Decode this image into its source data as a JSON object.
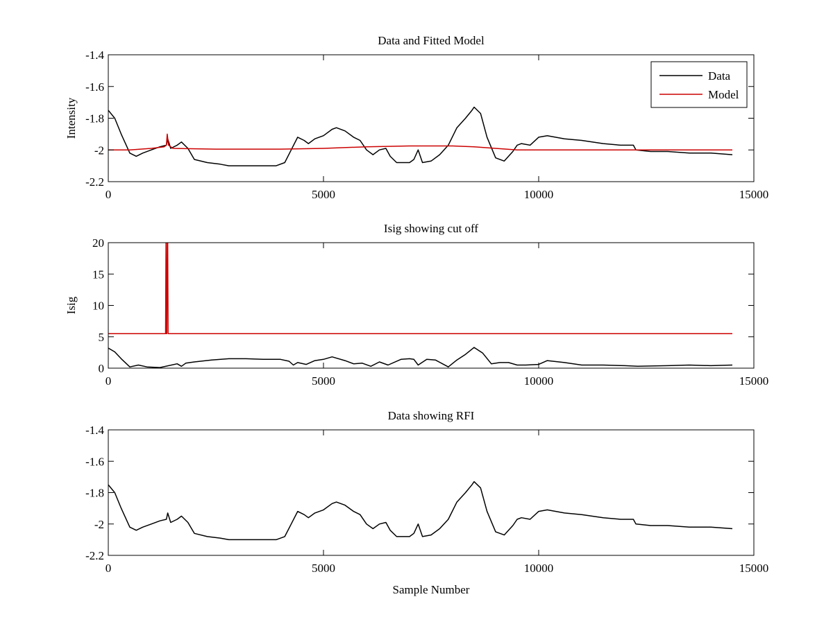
{
  "chart_data": [
    {
      "type": "line",
      "title": "Data and Fitted Model",
      "xlabel": "",
      "ylabel": "Intensity",
      "xlim": [
        0,
        15000
      ],
      "ylim": [
        -2.2,
        -1.4
      ],
      "xticks": [
        0,
        5000,
        10000,
        15000
      ],
      "xtick_labels": [
        "0",
        "5000",
        "10000",
        "15000"
      ],
      "yticks": [
        -2.2,
        -2,
        -1.8,
        -1.6,
        -1.4
      ],
      "ytick_labels": [
        "-2.2",
        "-2",
        "-1.8",
        "-1.6",
        "-1.4"
      ],
      "grid": false,
      "legend_position": "top-right",
      "series": [
        {
          "name": "Data",
          "color": "#000000",
          "x": [
            0,
            150,
            300,
            500,
            650,
            800,
            1000,
            1200,
            1350,
            1380,
            1450,
            1600,
            1700,
            1850,
            2000,
            2300,
            2600,
            2800,
            3200,
            3600,
            3900,
            4100,
            4250,
            4400,
            4550,
            4650,
            4800,
            5000,
            5200,
            5300,
            5500,
            5700,
            5850,
            6000,
            6150,
            6300,
            6450,
            6550,
            6700,
            7000,
            7100,
            7200,
            7300,
            7500,
            7700,
            7900,
            8100,
            8300,
            8450,
            8500,
            8650,
            8800,
            9000,
            9200,
            9400,
            9500,
            9600,
            9800,
            10000,
            10200,
            10600,
            11000,
            11500,
            11900,
            12200,
            12260,
            12600,
            13000,
            13500,
            14000,
            14500
          ],
          "y": [
            -1.75,
            -1.8,
            -1.9,
            -2.02,
            -2.04,
            -2.02,
            -2.0,
            -1.98,
            -1.97,
            -1.93,
            -1.99,
            -1.97,
            -1.95,
            -1.99,
            -2.06,
            -2.08,
            -2.09,
            -2.1,
            -2.1,
            -2.1,
            -2.1,
            -2.08,
            -2.0,
            -1.92,
            -1.94,
            -1.96,
            -1.93,
            -1.91,
            -1.87,
            -1.86,
            -1.88,
            -1.92,
            -1.94,
            -2.0,
            -2.03,
            -2.0,
            -1.99,
            -2.04,
            -2.08,
            -2.08,
            -2.06,
            -2.0,
            -2.08,
            -2.07,
            -2.03,
            -1.97,
            -1.86,
            -1.8,
            -1.75,
            -1.73,
            -1.77,
            -1.92,
            -2.05,
            -2.07,
            -2.01,
            -1.97,
            -1.96,
            -1.97,
            -1.92,
            -1.91,
            -1.93,
            -1.94,
            -1.96,
            -1.97,
            -1.97,
            -2.0,
            -2.01,
            -2.01,
            -2.02,
            -2.02,
            -2.03
          ]
        },
        {
          "name": "Model",
          "color": "#cc0000",
          "x": [
            0,
            500,
            1000,
            1300,
            1350,
            1370,
            1400,
            1500,
            2500,
            4000,
            5000,
            6000,
            7000,
            8000,
            8500,
            9000,
            9500,
            10000,
            11000,
            12000,
            13000,
            14500
          ],
          "y": [
            -2.0,
            -2.0,
            -1.99,
            -1.98,
            -1.97,
            -1.9,
            -1.97,
            -1.99,
            -1.995,
            -1.995,
            -1.99,
            -1.98,
            -1.975,
            -1.975,
            -1.98,
            -1.99,
            -2.0,
            -2.0,
            -2.0,
            -2.0,
            -2.0,
            -2.0
          ]
        }
      ]
    },
    {
      "type": "line",
      "title": "Isig showing cut off",
      "xlabel": "",
      "ylabel": "Isig",
      "xlim": [
        0,
        15000
      ],
      "ylim": [
        0,
        20
      ],
      "xticks": [
        0,
        5000,
        10000,
        15000
      ],
      "xtick_labels": [
        "0",
        "5000",
        "10000",
        "15000"
      ],
      "yticks": [
        0,
        5,
        10,
        15,
        20
      ],
      "ytick_labels": [
        "0",
        "5",
        "10",
        "15",
        "20"
      ],
      "grid": false,
      "series": [
        {
          "color": "#000000",
          "x": [
            0,
            150,
            300,
            500,
            700,
            900,
            1200,
            1600,
            1700,
            1800,
            2000,
            2400,
            2800,
            3200,
            3600,
            4000,
            4200,
            4300,
            4400,
            4600,
            4800,
            5000,
            5200,
            5500,
            5700,
            5900,
            6100,
            6300,
            6500,
            6800,
            7000,
            7100,
            7200,
            7400,
            7600,
            7900,
            8100,
            8300,
            8500,
            8700,
            8900,
            9100,
            9300,
            9500,
            9700,
            10000,
            10200,
            10600,
            11000,
            11500,
            12000,
            12300,
            13000,
            13500,
            14000,
            14500
          ],
          "y": [
            3.2,
            2.6,
            1.5,
            0.2,
            0.5,
            0.2,
            0.1,
            0.7,
            0.3,
            0.8,
            1.0,
            1.3,
            1.5,
            1.5,
            1.4,
            1.4,
            1.1,
            0.5,
            0.9,
            0.6,
            1.2,
            1.4,
            1.8,
            1.2,
            0.7,
            0.8,
            0.3,
            1.0,
            0.5,
            1.4,
            1.5,
            1.4,
            0.5,
            1.4,
            1.3,
            0.2,
            1.3,
            2.2,
            3.3,
            2.4,
            0.7,
            0.9,
            0.9,
            0.5,
            0.5,
            0.6,
            1.2,
            0.9,
            0.5,
            0.5,
            0.4,
            0.3,
            0.4,
            0.5,
            0.4,
            0.5
          ]
        },
        {
          "color": "#cc0000",
          "x": [
            0,
            1330,
            1340,
            1350,
            1360,
            1370,
            1380,
            1390,
            14500
          ],
          "y": [
            5.5,
            5.5,
            20,
            5.5,
            5.5,
            20,
            20,
            5.5,
            5.5
          ]
        }
      ]
    },
    {
      "type": "line",
      "title": "Data showing RFI",
      "xlabel": "Sample Number",
      "ylabel": "",
      "xlim": [
        0,
        15000
      ],
      "ylim": [
        -2.2,
        -1.4
      ],
      "xticks": [
        0,
        5000,
        10000,
        15000
      ],
      "xtick_labels": [
        "0",
        "5000",
        "10000",
        "15000"
      ],
      "yticks": [
        -2.2,
        -2,
        -1.8,
        -1.6,
        -1.4
      ],
      "ytick_labels": [
        "-2.2",
        "-2",
        "-1.8",
        "-1.6",
        "-1.4"
      ],
      "grid": false,
      "series": [
        {
          "color": "#000000",
          "x": [
            0,
            150,
            300,
            500,
            650,
            800,
            1000,
            1200,
            1350,
            1380,
            1450,
            1600,
            1700,
            1850,
            2000,
            2300,
            2600,
            2800,
            3200,
            3600,
            3900,
            4100,
            4250,
            4400,
            4550,
            4650,
            4800,
            5000,
            5200,
            5300,
            5500,
            5700,
            5850,
            6000,
            6150,
            6300,
            6450,
            6550,
            6700,
            7000,
            7100,
            7200,
            7300,
            7500,
            7700,
            7900,
            8100,
            8300,
            8450,
            8500,
            8650,
            8800,
            9000,
            9200,
            9400,
            9500,
            9600,
            9800,
            10000,
            10200,
            10600,
            11000,
            11500,
            11900,
            12200,
            12260,
            12600,
            13000,
            13500,
            14000,
            14500
          ],
          "y": [
            -1.75,
            -1.8,
            -1.9,
            -2.02,
            -2.04,
            -2.02,
            -2.0,
            -1.98,
            -1.97,
            -1.93,
            -1.99,
            -1.97,
            -1.95,
            -1.99,
            -2.06,
            -2.08,
            -2.09,
            -2.1,
            -2.1,
            -2.1,
            -2.1,
            -2.08,
            -2.0,
            -1.92,
            -1.94,
            -1.96,
            -1.93,
            -1.91,
            -1.87,
            -1.86,
            -1.88,
            -1.92,
            -1.94,
            -2.0,
            -2.03,
            -2.0,
            -1.99,
            -2.04,
            -2.08,
            -2.08,
            -2.06,
            -2.0,
            -2.08,
            -2.07,
            -2.03,
            -1.97,
            -1.86,
            -1.8,
            -1.75,
            -1.73,
            -1.77,
            -1.92,
            -2.05,
            -2.07,
            -2.01,
            -1.97,
            -1.96,
            -1.97,
            -1.92,
            -1.91,
            -1.93,
            -1.94,
            -1.96,
            -1.97,
            -1.97,
            -2.0,
            -2.01,
            -2.01,
            -2.02,
            -2.02,
            -2.03
          ]
        }
      ]
    }
  ]
}
